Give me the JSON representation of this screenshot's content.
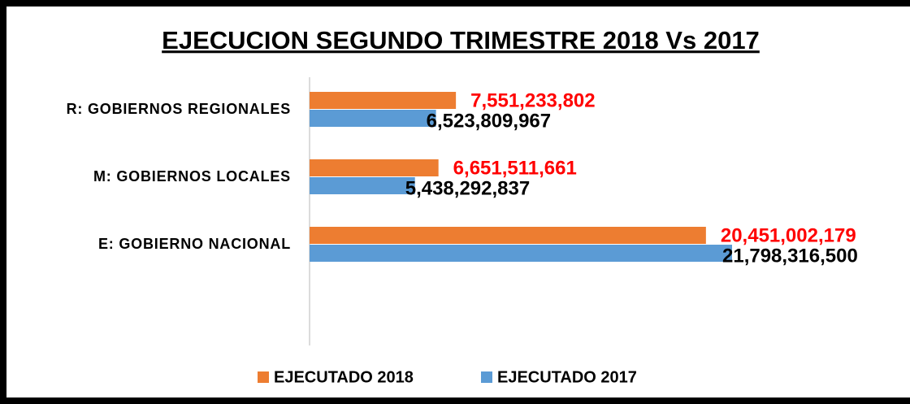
{
  "chart_data": {
    "type": "hbar",
    "title": "EJECUCION SEGUNDO TRIMESTRE 2018 Vs 2017",
    "categories": [
      "R: GOBIERNOS REGIONALES",
      "M: GOBIERNOS LOCALES",
      "E: GOBIERNO NACIONAL"
    ],
    "series": [
      {
        "name": "EJECUTADO 2018",
        "color": "#ed7d31",
        "label_color": "#ff0000",
        "values": [
          7551233802,
          6651511661,
          20451002179
        ],
        "value_labels": [
          "7,551,233,802",
          "6,651,511,661",
          "20,451,002,179"
        ]
      },
      {
        "name": "EJECUTADO 2017",
        "color": "#5b9bd5",
        "label_color": "#000000",
        "values": [
          6523809967,
          5438292837,
          21798316500
        ],
        "value_labels": [
          "6,523,809,967",
          "5,438,292,837",
          "21,798,316,500"
        ]
      }
    ],
    "legend": "bottom"
  }
}
